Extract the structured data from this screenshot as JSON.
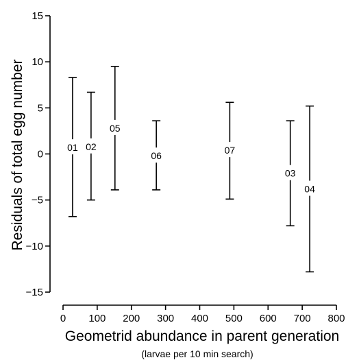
{
  "chart_data": {
    "type": "scatter",
    "style": "error-bars-with-text-markers",
    "xlabel": "Geometrid abundance in parent generation",
    "xlabel_sub": "(larvae per 10 min search)",
    "ylabel": "Residuals of total egg number",
    "xlim": [
      -5,
      800
    ],
    "ylim": [
      -16,
      15
    ],
    "xticks": [
      "0",
      "100",
      "200",
      "300",
      "400",
      "500",
      "600",
      "700",
      "800"
    ],
    "yticks": [
      "15",
      "10",
      "5",
      "0",
      "−5",
      "−10",
      "−15"
    ],
    "xtick_values": [
      0,
      100,
      200,
      300,
      400,
      500,
      600,
      700,
      800
    ],
    "ytick_values": [
      15,
      10,
      5,
      0,
      -5,
      -10,
      -15
    ],
    "grid": false,
    "legend": "none",
    "points": [
      {
        "label": "01",
        "x": 28,
        "y": 0.7,
        "low": -6.8,
        "high": 8.3
      },
      {
        "label": "02",
        "x": 82,
        "y": 0.8,
        "low": -5.0,
        "high": 6.7
      },
      {
        "label": "05",
        "x": 152,
        "y": 2.8,
        "low": -3.9,
        "high": 9.5
      },
      {
        "label": "06",
        "x": 273,
        "y": -0.2,
        "low": -3.9,
        "high": 3.6
      },
      {
        "label": "07",
        "x": 488,
        "y": 0.4,
        "low": -4.9,
        "high": 5.6
      },
      {
        "label": "03",
        "x": 665,
        "y": -2.1,
        "low": -7.8,
        "high": 3.6
      },
      {
        "label": "04",
        "x": 722,
        "y": -3.8,
        "low": -12.8,
        "high": 5.2
      }
    ]
  }
}
